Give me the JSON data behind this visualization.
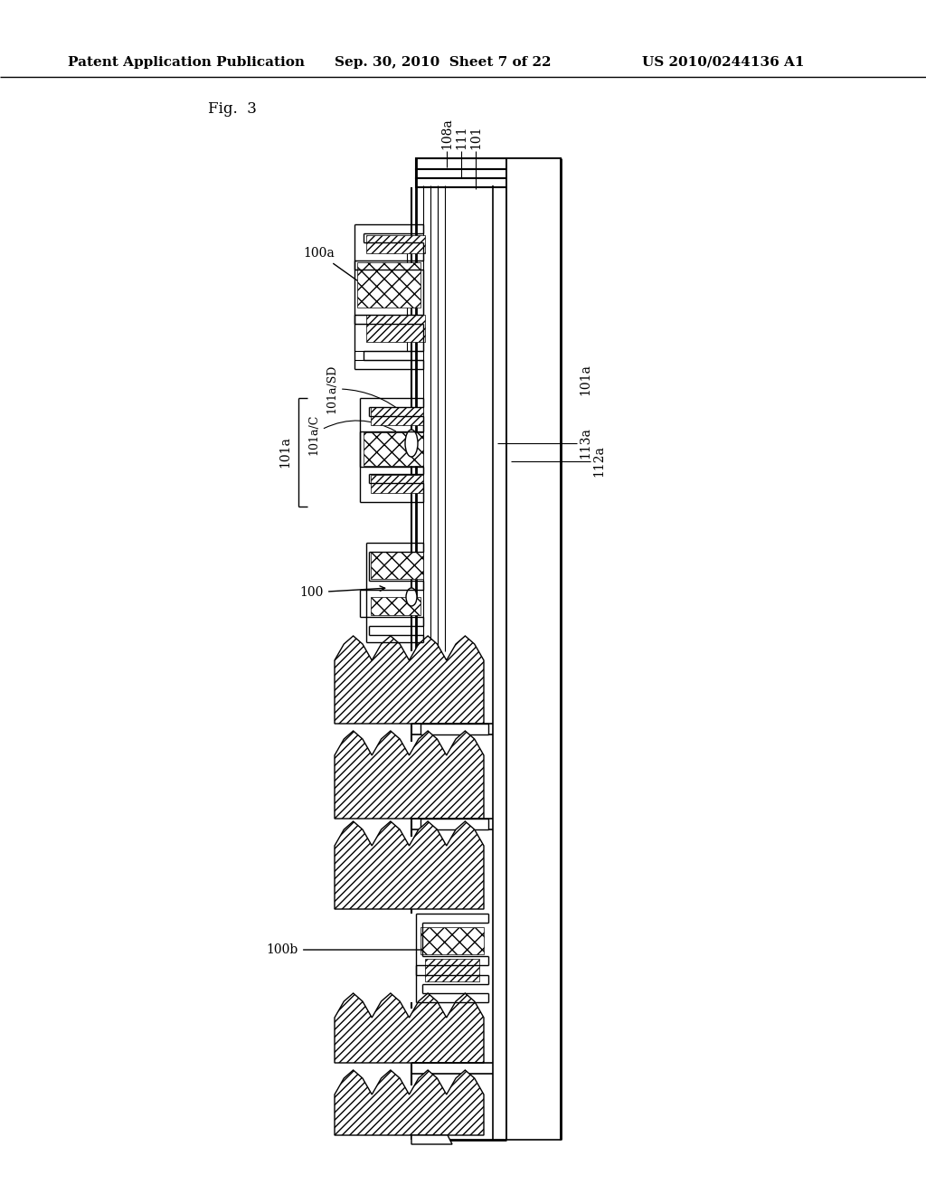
{
  "header_left": "Patent Application Publication",
  "header_center": "Sep. 30, 2010  Sheet 7 of 22",
  "header_right": "US 2010/0244136 A1",
  "fig_label": "Fig.  3",
  "bg_color": "#ffffff",
  "line_color": "#000000"
}
